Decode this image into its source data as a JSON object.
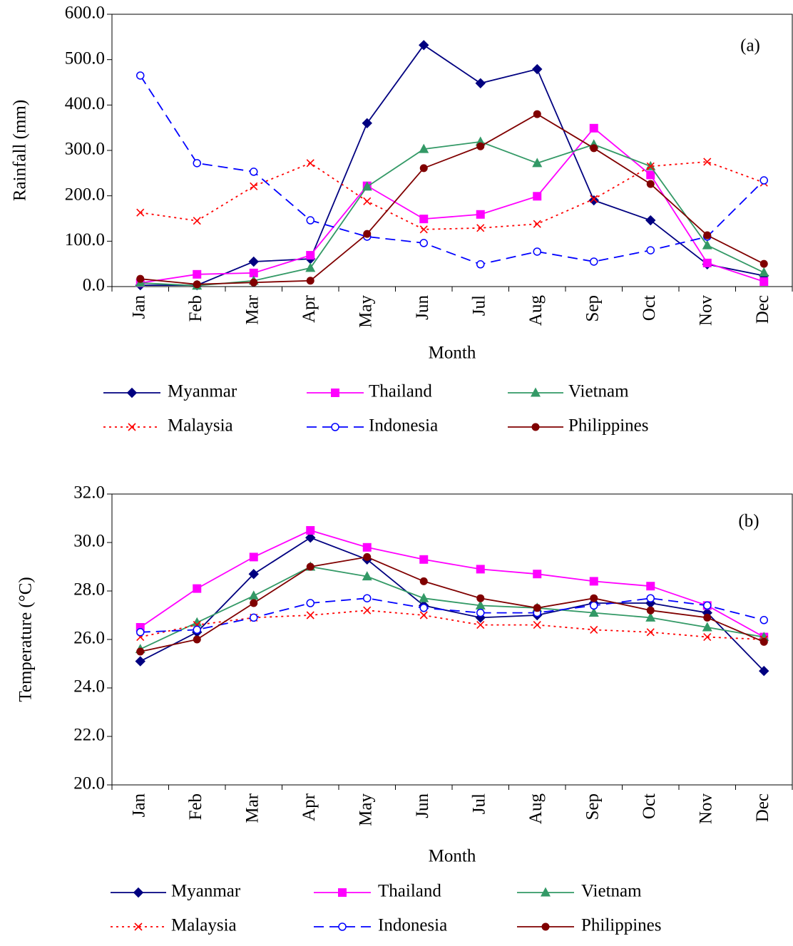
{
  "chart_data": [
    {
      "type": "line",
      "annotation": "(a)",
      "x_label": "Month",
      "y_label": "Rainfall (mm)",
      "categories": [
        "Jan",
        "Feb",
        "Mar",
        "Apr",
        "May",
        "Jun",
        "Jul",
        "Aug",
        "Sep",
        "Oct",
        "Nov",
        "Dec"
      ],
      "ylim": [
        0,
        600
      ],
      "yticks": [
        {
          "value": 0,
          "label": "0.0"
        },
        {
          "value": 100,
          "label": "100.0"
        },
        {
          "value": 200,
          "label": "200.0"
        },
        {
          "value": 300,
          "label": "300.0"
        },
        {
          "value": 400,
          "label": "400.0"
        },
        {
          "value": 500,
          "label": "500.0"
        },
        {
          "value": 600,
          "label": "600.0"
        }
      ],
      "series": [
        {
          "name": "Myanmar",
          "color": "#000080",
          "marker": "diamond",
          "dash": "solid",
          "values": [
            3,
            3,
            55,
            61,
            360,
            532,
            448,
            479,
            190,
            146,
            49,
            24
          ]
        },
        {
          "name": "Thailand",
          "color": "#FF00FF",
          "marker": "square",
          "dash": "solid",
          "values": [
            8,
            27,
            30,
            69,
            222,
            149,
            159,
            199,
            349,
            246,
            52,
            11
          ]
        },
        {
          "name": "Vietnam",
          "color": "#339966",
          "marker": "triangle",
          "dash": "solid",
          "values": [
            8,
            2,
            13,
            41,
            220,
            303,
            319,
            272,
            313,
            265,
            91,
            31
          ]
        },
        {
          "name": "Malaysia",
          "color": "#FF0000",
          "marker": "x",
          "dash": "dotted",
          "values": [
            163,
            145,
            221,
            272,
            188,
            126,
            129,
            138,
            193,
            265,
            275,
            229
          ]
        },
        {
          "name": "Indonesia",
          "color": "#0000FF",
          "marker": "open-circle",
          "dash": "dashed",
          "values": [
            465,
            272,
            253,
            146,
            110,
            96,
            49,
            77,
            55,
            80,
            110,
            234
          ]
        },
        {
          "name": "Philippines",
          "color": "#800000",
          "marker": "circle",
          "dash": "solid",
          "values": [
            17,
            5,
            9,
            13,
            116,
            261,
            309,
            380,
            305,
            226,
            113,
            50
          ]
        }
      ]
    },
    {
      "type": "line",
      "annotation": "(b)",
      "x_label": "Month",
      "y_label": "Temperature (°C)",
      "categories": [
        "Jan",
        "Feb",
        "Mar",
        "Apr",
        "May",
        "Jun",
        "Jul",
        "Aug",
        "Sep",
        "Oct",
        "Nov",
        "Dec"
      ],
      "ylim": [
        20,
        32
      ],
      "yticks": [
        {
          "value": 20,
          "label": "20.0"
        },
        {
          "value": 22,
          "label": "22.0"
        },
        {
          "value": 24,
          "label": "24.0"
        },
        {
          "value": 26,
          "label": "26.0"
        },
        {
          "value": 28,
          "label": "28.0"
        },
        {
          "value": 30,
          "label": "30.0"
        },
        {
          "value": 32,
          "label": "32.0"
        }
      ],
      "series": [
        {
          "name": "Myanmar",
          "color": "#000080",
          "marker": "diamond",
          "dash": "solid",
          "values": [
            25.1,
            26.3,
            28.7,
            30.2,
            29.3,
            27.4,
            26.9,
            27.0,
            27.5,
            27.5,
            27.1,
            24.7
          ]
        },
        {
          "name": "Thailand",
          "color": "#FF00FF",
          "marker": "square",
          "dash": "solid",
          "values": [
            26.5,
            28.1,
            29.4,
            30.5,
            29.8,
            29.3,
            28.9,
            28.7,
            28.4,
            28.2,
            27.4,
            26.1
          ]
        },
        {
          "name": "Vietnam",
          "color": "#339966",
          "marker": "triangle",
          "dash": "solid",
          "values": [
            25.6,
            26.7,
            27.8,
            29.0,
            28.6,
            27.7,
            27.4,
            27.3,
            27.1,
            26.9,
            26.5,
            26.1
          ]
        },
        {
          "name": "Malaysia",
          "color": "#FF0000",
          "marker": "x",
          "dash": "dotted",
          "values": [
            26.1,
            26.6,
            26.9,
            27.0,
            27.2,
            27.0,
            26.6,
            26.6,
            26.4,
            26.3,
            26.1,
            26.0
          ]
        },
        {
          "name": "Indonesia",
          "color": "#0000FF",
          "marker": "open-circle",
          "dash": "dashed",
          "values": [
            26.3,
            26.4,
            26.9,
            27.5,
            27.7,
            27.3,
            27.1,
            27.1,
            27.4,
            27.7,
            27.4,
            26.8
          ]
        },
        {
          "name": "Philippines",
          "color": "#800000",
          "marker": "circle",
          "dash": "solid",
          "values": [
            25.5,
            26.0,
            27.5,
            29.0,
            29.4,
            28.4,
            27.7,
            27.3,
            27.7,
            27.2,
            26.9,
            25.9
          ]
        }
      ]
    }
  ]
}
